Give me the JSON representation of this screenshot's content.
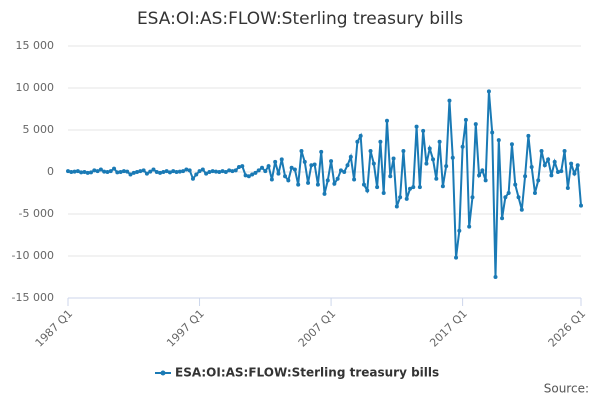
{
  "chart_data": {
    "type": "line",
    "title": "ESA:OI:AS:FLOW:Sterling treasury bills",
    "source": "Source:",
    "categories": [
      "1987 Q1",
      null,
      null,
      null,
      null,
      null,
      null,
      null,
      null,
      null,
      null,
      null,
      null,
      null,
      null,
      null,
      null,
      null,
      null,
      null,
      null,
      null,
      null,
      null,
      null,
      null,
      null,
      null,
      null,
      null,
      null,
      null,
      null,
      null,
      null,
      null,
      null,
      null,
      null,
      null,
      "1997 Q1",
      null,
      null,
      null,
      null,
      null,
      null,
      null,
      null,
      null,
      null,
      null,
      null,
      null,
      null,
      null,
      null,
      null,
      null,
      null,
      null,
      null,
      null,
      null,
      null,
      null,
      null,
      null,
      null,
      null,
      null,
      null,
      null,
      null,
      null,
      null,
      null,
      null,
      null,
      null,
      "2007 Q1",
      null,
      null,
      null,
      null,
      null,
      null,
      null,
      null,
      null,
      null,
      null,
      null,
      null,
      null,
      null,
      null,
      null,
      null,
      null,
      null,
      null,
      null,
      null,
      null,
      null,
      null,
      null,
      null,
      null,
      null,
      null,
      null,
      null,
      null,
      null,
      null,
      null,
      null,
      null,
      "2017 Q1",
      null,
      null,
      null,
      null,
      null,
      null,
      null,
      null,
      null,
      null,
      null,
      null,
      null,
      null,
      null,
      null,
      null,
      null,
      null,
      null,
      null,
      null,
      null,
      null,
      null,
      null,
      null,
      null,
      null,
      null,
      null,
      null,
      null,
      null,
      null,
      "2026 Q1"
    ],
    "series": [
      {
        "name": "ESA:OI:AS:FLOW:Sterling treasury bills",
        "color": "#1a7ab5",
        "values": [
          100,
          0,
          50,
          100,
          -50,
          0,
          -100,
          -50,
          200,
          100,
          300,
          50,
          0,
          100,
          400,
          -50,
          0,
          100,
          50,
          -300,
          -100,
          0,
          100,
          200,
          -200,
          50,
          300,
          0,
          -100,
          0,
          100,
          -50,
          100,
          0,
          50,
          100,
          300,
          200,
          -800,
          -300,
          100,
          300,
          -200,
          0,
          100,
          50,
          0,
          100,
          0,
          200,
          100,
          200,
          600,
          700,
          -400,
          -500,
          -300,
          -100,
          200,
          500,
          100,
          700,
          -900,
          1200,
          -200,
          1500,
          -500,
          -1000,
          500,
          300,
          -1500,
          2500,
          1200,
          -1300,
          800,
          900,
          -1500,
          2400,
          -2600,
          -1000,
          1300,
          -1400,
          -800,
          200,
          0,
          800,
          1800,
          -900,
          3600,
          4300,
          -1500,
          -2200,
          2500,
          1000,
          -1800,
          3600,
          -2500,
          6100,
          -500,
          1600,
          -4100,
          -3000,
          2500,
          -3200,
          -2000,
          -1800,
          5400,
          -1800,
          4900,
          1000,
          2800,
          1500,
          -800,
          3600,
          -1700,
          700,
          8500,
          1700,
          -10200,
          -7000,
          3000,
          6200,
          -6500,
          -3000,
          5700,
          -400,
          200,
          -1000,
          9600,
          4700,
          -12500,
          3800,
          -5500,
          -3000,
          -2500,
          3300,
          -1500,
          -3000,
          -4500,
          -500,
          4300,
          600,
          -2500,
          -1000,
          2500,
          800,
          1500,
          -400,
          1200,
          0,
          100,
          2500,
          -1900,
          1000,
          -200,
          800,
          -4000
        ]
      }
    ],
    "ylim": [
      -15000,
      15000
    ],
    "yticks": [
      {
        "value": -15000,
        "label": "-15 000"
      },
      {
        "value": -10000,
        "label": "-10 000"
      },
      {
        "value": -5000,
        "label": "-5 000"
      },
      0,
      {
        "value": 5000,
        "label": "5 000"
      },
      {
        "value": 10000,
        "label": "10 000"
      },
      {
        "value": 15000,
        "label": "15 000"
      }
    ],
    "grid": true
  }
}
